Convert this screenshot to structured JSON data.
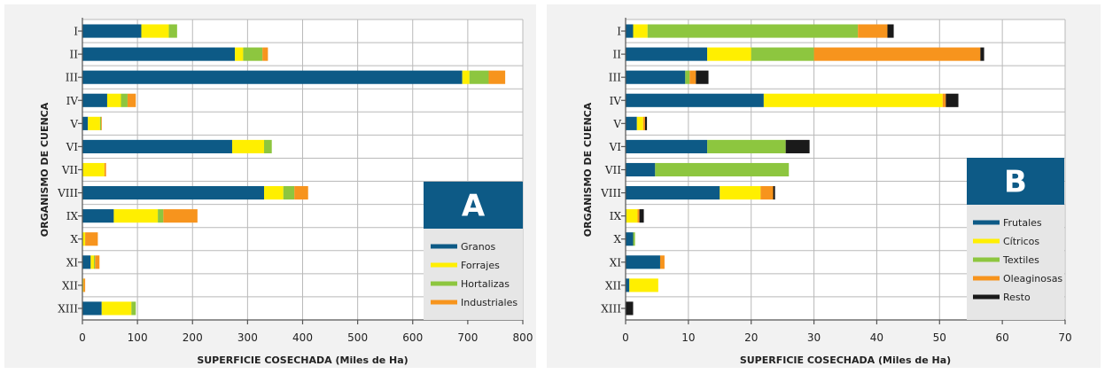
{
  "chart_data": [
    {
      "type": "bar",
      "orientation": "horizontal",
      "stacked": true,
      "badge": "A",
      "xlabel": "SUPERFICIE COSECHADA (Miles de Ha)",
      "ylabel": "ORGANISMO DE CUENCA",
      "xlim": [
        0,
        800
      ],
      "xticks": [
        0,
        100,
        200,
        300,
        400,
        500,
        600,
        700,
        800
      ],
      "grid": true,
      "legend_position": "bottom-right",
      "categories": [
        "I",
        "II",
        "III",
        "IV",
        "V",
        "VI",
        "VII",
        "VIII",
        "IX",
        "X",
        "XI",
        "XII",
        "XIII"
      ],
      "series": [
        {
          "name": "Granos",
          "color": "#0d5a86",
          "values": [
            107,
            277,
            690,
            45,
            10,
            272,
            0,
            330,
            57,
            0,
            15,
            0,
            35
          ]
        },
        {
          "name": "Forrajes",
          "color": "#ffef00",
          "values": [
            50,
            15,
            13,
            25,
            22,
            58,
            40,
            35,
            80,
            5,
            6,
            2,
            54
          ]
        },
        {
          "name": "Hortalizas",
          "color": "#8dc63f",
          "values": [
            15,
            35,
            35,
            12,
            2,
            14,
            0,
            20,
            10,
            0,
            2,
            0,
            8
          ]
        },
        {
          "name": "Industriales",
          "color": "#f7941d",
          "values": [
            0,
            10,
            30,
            15,
            1,
            0,
            3,
            25,
            62,
            23,
            8,
            3,
            0
          ]
        }
      ]
    },
    {
      "type": "bar",
      "orientation": "horizontal",
      "stacked": true,
      "badge": "B",
      "xlabel": "SUPERFICIE COSECHADA (Miles de Ha)",
      "ylabel": "ORGANISMO DE CUENCA",
      "xlim": [
        0,
        70
      ],
      "xticks": [
        0,
        10,
        20,
        30,
        40,
        50,
        60,
        70
      ],
      "grid": true,
      "legend_position": "right",
      "categories": [
        "I",
        "II",
        "III",
        "IV",
        "V",
        "VI",
        "VII",
        "VIII",
        "IX",
        "X",
        "XI",
        "XII",
        "XIII"
      ],
      "series": [
        {
          "name": "Frutales",
          "color": "#0d5a86",
          "values": [
            1.2,
            13,
            9.5,
            22,
            1.8,
            13,
            4.7,
            15,
            0.1,
            1.2,
            5.5,
            0.6,
            0
          ]
        },
        {
          "name": "Cítricos",
          "color": "#ffef00",
          "values": [
            2.3,
            7,
            0,
            28.5,
            1,
            0,
            0,
            6.5,
            1.8,
            0,
            0,
            4.6,
            0
          ]
        },
        {
          "name": "Textiles",
          "color": "#8dc63f",
          "values": [
            33.5,
            10,
            0.7,
            0,
            0,
            12.5,
            21.3,
            0,
            0,
            0.3,
            0,
            0,
            0
          ]
        },
        {
          "name": "Oleaginosas",
          "color": "#f7941d",
          "values": [
            4.7,
            26.5,
            1,
            0.5,
            0.3,
            0,
            0,
            2,
            0.3,
            0,
            0.7,
            0,
            0
          ]
        },
        {
          "name": "Resto",
          "color": "#1a1a1a",
          "values": [
            1,
            0.6,
            2,
            2,
            0.3,
            3.8,
            0,
            0.3,
            0.7,
            0,
            0,
            0,
            1.2
          ]
        }
      ]
    }
  ]
}
